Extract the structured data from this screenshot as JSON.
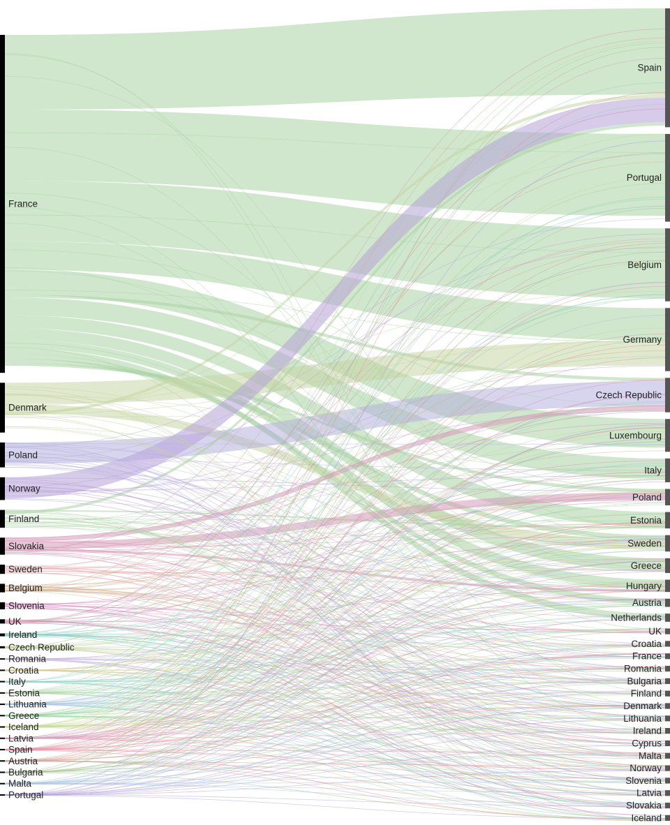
{
  "chart_data": {
    "type": "sankey",
    "colors": {
      "node_bar_left": "#000000",
      "node_bar_right": "#555555",
      "label": "#222222",
      "flow_palette": [
        "#a9d3a4",
        "#b6b0de",
        "#c7d6a4",
        "#d69bb8",
        "#8fcfc4",
        "#b7a0d8",
        "#e4a3a8",
        "#a7c4e2",
        "#c2d88e"
      ]
    },
    "sources": [
      {
        "name": "France",
        "value": 475,
        "color": "#a9d3a4"
      },
      {
        "name": "Denmark",
        "value": 70,
        "color": "#c7d6a4"
      },
      {
        "name": "Poland",
        "value": 35,
        "color": "#b6b0de"
      },
      {
        "name": "Norway",
        "value": 32,
        "color": "#b7a0d8"
      },
      {
        "name": "Finland",
        "value": 25,
        "color": "#a9d3a4"
      },
      {
        "name": "Slovakia",
        "value": 24,
        "color": "#d69bb8"
      },
      {
        "name": "Sweden",
        "value": 13,
        "color": "#e4a3a8"
      },
      {
        "name": "Belgium",
        "value": 12,
        "color": "#d4b08f"
      },
      {
        "name": "Slovenia",
        "value": 10,
        "color": "#d98fc4"
      },
      {
        "name": "UK",
        "value": 6,
        "color": "#c58fa8"
      },
      {
        "name": "Ireland",
        "value": 4,
        "color": "#8fcfc4"
      },
      {
        "name": "Czech Republic",
        "value": 3,
        "color": "#c7d6a4"
      },
      {
        "name": "Romania",
        "value": 2,
        "color": "#b7a0d8"
      },
      {
        "name": "Croatia",
        "value": 2,
        "color": "#d4c48f"
      },
      {
        "name": "Italy",
        "value": 2,
        "color": "#8fd4c9"
      },
      {
        "name": "Estonia",
        "value": 2,
        "color": "#a9d3a4"
      },
      {
        "name": "Lithuania",
        "value": 2,
        "color": "#a7c4e2"
      },
      {
        "name": "Greece",
        "value": 2,
        "color": "#8fd49a"
      },
      {
        "name": "Iceland",
        "value": 2,
        "color": "#c2d88e"
      },
      {
        "name": "Latvia",
        "value": 2,
        "color": "#d69bb8"
      },
      {
        "name": "Spain",
        "value": 2,
        "color": "#e48fa3"
      },
      {
        "name": "Austria",
        "value": 2,
        "color": "#d4a08f"
      },
      {
        "name": "Bulgaria",
        "value": 2,
        "color": "#a3c48f"
      },
      {
        "name": "Malta",
        "value": 2,
        "color": "#a7c4e2"
      },
      {
        "name": "Portugal",
        "value": 2,
        "color": "#b0a0d8"
      }
    ],
    "targets": [
      {
        "name": "Spain",
        "value": 145
      },
      {
        "name": "Portugal",
        "value": 107
      },
      {
        "name": "Belgium",
        "value": 89
      },
      {
        "name": "Germany",
        "value": 77
      },
      {
        "name": "Czech Republic",
        "value": 42
      },
      {
        "name": "Luxembourg",
        "value": 40
      },
      {
        "name": "Italy",
        "value": 29
      },
      {
        "name": "Poland",
        "value": 20
      },
      {
        "name": "Estonia",
        "value": 20
      },
      {
        "name": "Sweden",
        "value": 20
      },
      {
        "name": "Greece",
        "value": 18
      },
      {
        "name": "Hungary",
        "value": 15
      },
      {
        "name": "Austria",
        "value": 10
      },
      {
        "name": "Netherlands",
        "value": 10
      },
      {
        "name": "UK",
        "value": 7
      },
      {
        "name": "Croatia",
        "value": 7
      },
      {
        "name": "France",
        "value": 7
      },
      {
        "name": "Romania",
        "value": 7
      },
      {
        "name": "Bulgaria",
        "value": 7
      },
      {
        "name": "Finland",
        "value": 7
      },
      {
        "name": "Denmark",
        "value": 7
      },
      {
        "name": "Lithuania",
        "value": 7
      },
      {
        "name": "Ireland",
        "value": 7
      },
      {
        "name": "Cyprus",
        "value": 7
      },
      {
        "name": "Malta",
        "value": 7
      },
      {
        "name": "Norway",
        "value": 7
      },
      {
        "name": "Slovenia",
        "value": 7
      },
      {
        "name": "Latvia",
        "value": 7
      },
      {
        "name": "Slovakia",
        "value": 7
      },
      {
        "name": "Iceland",
        "value": 7
      }
    ],
    "flows": [
      {
        "from": "France",
        "to": "Spain",
        "value": 105
      },
      {
        "from": "France",
        "to": "Portugal",
        "value": 100
      },
      {
        "from": "France",
        "to": "Belgium",
        "value": 85
      },
      {
        "from": "France",
        "to": "Germany",
        "value": 40
      },
      {
        "from": "France",
        "to": "Luxembourg",
        "value": 35
      },
      {
        "from": "France",
        "to": "Czech Republic",
        "value": 4
      },
      {
        "from": "France",
        "to": "Italy",
        "value": 25
      },
      {
        "from": "France",
        "to": "Estonia",
        "value": 18
      },
      {
        "from": "France",
        "to": "Greece",
        "value": 16
      },
      {
        "from": "France",
        "to": "Hungary",
        "value": 12
      },
      {
        "from": "France",
        "to": "Netherlands",
        "value": 8
      },
      {
        "from": "France",
        "to": "Austria",
        "value": 7
      },
      {
        "from": "France",
        "to": "Sweden",
        "value": 6
      },
      {
        "from": "France",
        "to": "Poland",
        "value": 4
      },
      {
        "from": "Denmark",
        "to": "Germany",
        "value": 30
      },
      {
        "from": "Denmark",
        "to": "Sweden",
        "value": 12
      },
      {
        "from": "Denmark",
        "to": "Spain",
        "value": 4
      },
      {
        "from": "Poland",
        "to": "Czech Republic",
        "value": 30
      },
      {
        "from": "Norway",
        "to": "Spain",
        "value": 30
      },
      {
        "from": "Finland",
        "to": "Estonia",
        "value": 2
      },
      {
        "from": "Finland",
        "to": "Spain",
        "value": 4
      },
      {
        "from": "Slovakia",
        "to": "Czech Republic",
        "value": 6
      },
      {
        "from": "Slovakia",
        "to": "Poland",
        "value": 10
      },
      {
        "from": "Slovakia",
        "to": "Hungary",
        "value": 3
      }
    ]
  }
}
